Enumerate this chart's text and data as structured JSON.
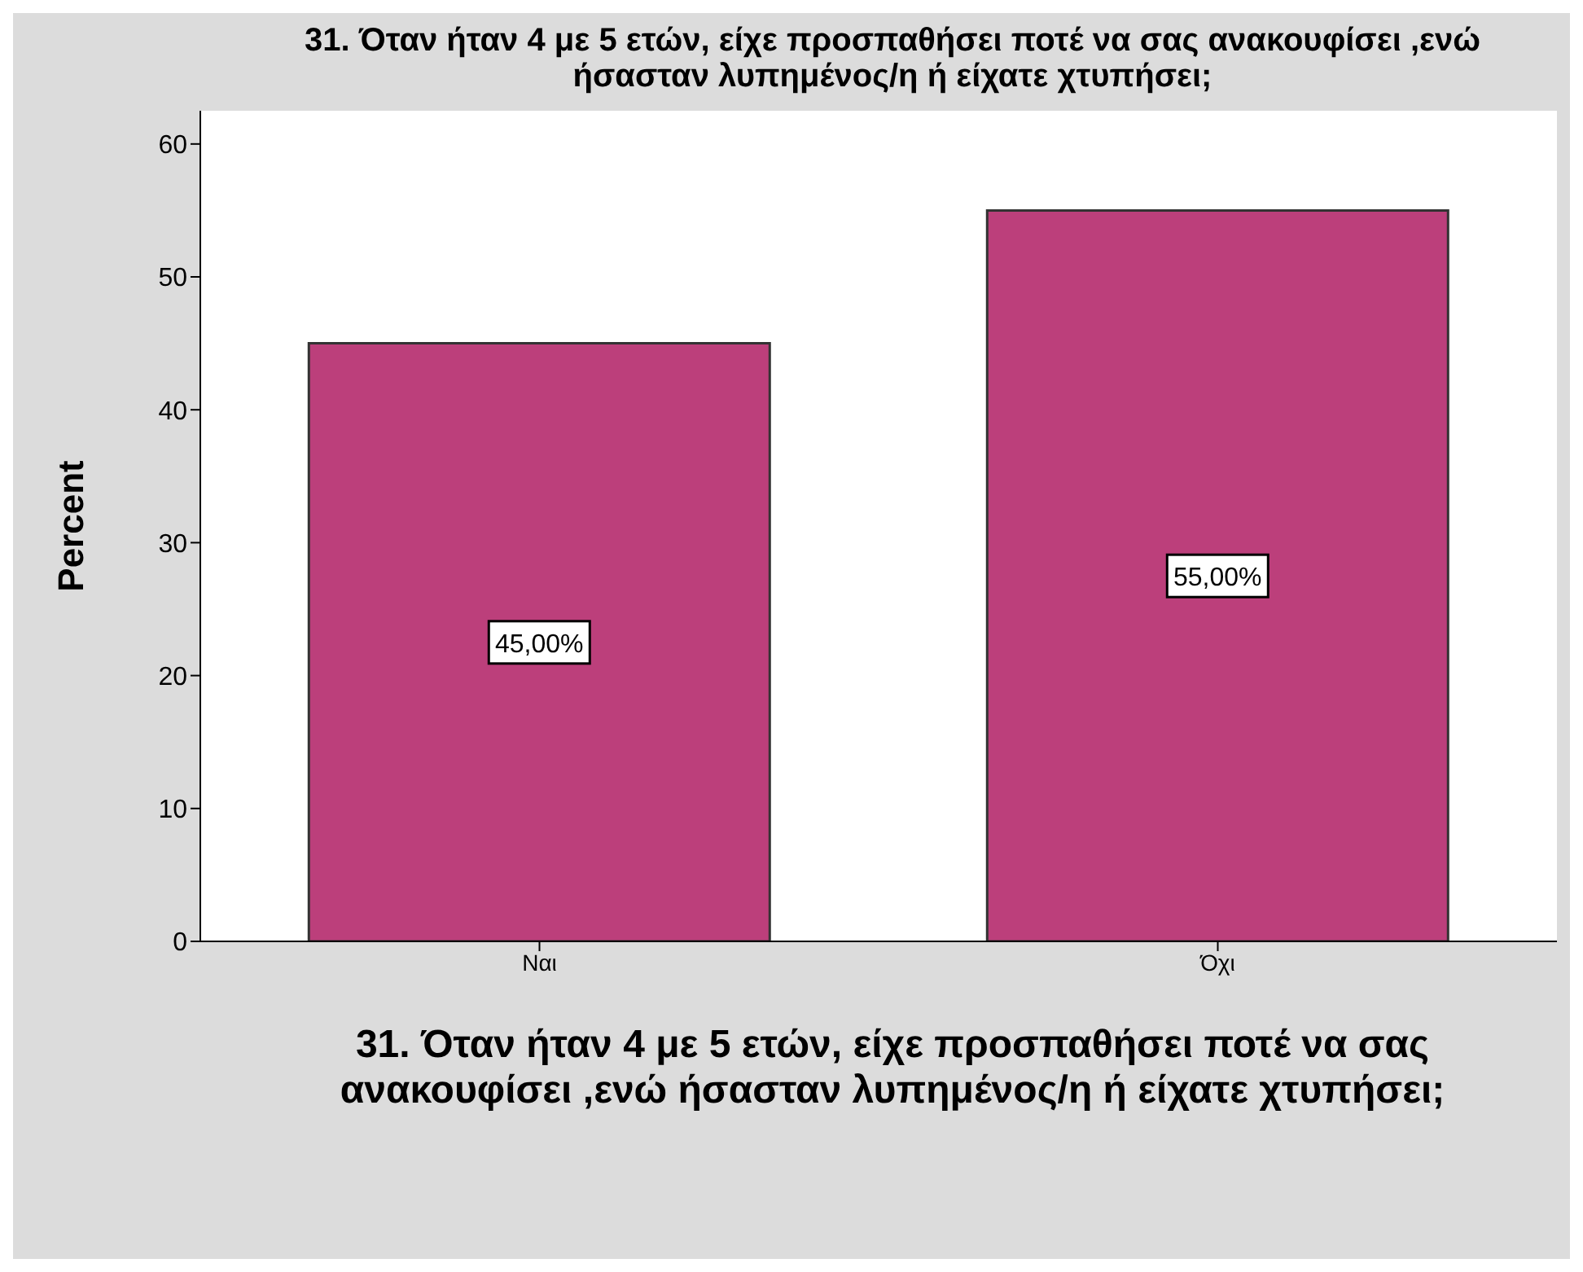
{
  "chart_data": {
    "type": "bar",
    "title": "31. Όταν ήταν 4 με 5 ετών, είχε προσπαθήσει ποτέ να σας ανακουφίσει ,ενώ ήσασταν λυπημένος/η ή είχατε χτυπήσει;",
    "xlabel": "31. Όταν ήταν 4 με 5 ετών, είχε προσπαθήσει ποτέ να σας ανακουφίσει ,ενώ ήσασταν λυπημένος/η ή είχατε χτυπήσει;",
    "ylabel": "Percent",
    "categories": [
      "Ναι",
      "Όχι"
    ],
    "values": [
      45,
      55
    ],
    "color": "#bc3f7b",
    "value_labels": [
      "45,00%",
      "55,00%"
    ],
    "ylim": [
      0,
      62.5
    ],
    "yticks": [
      0,
      10,
      20,
      30,
      40,
      50,
      60
    ]
  }
}
